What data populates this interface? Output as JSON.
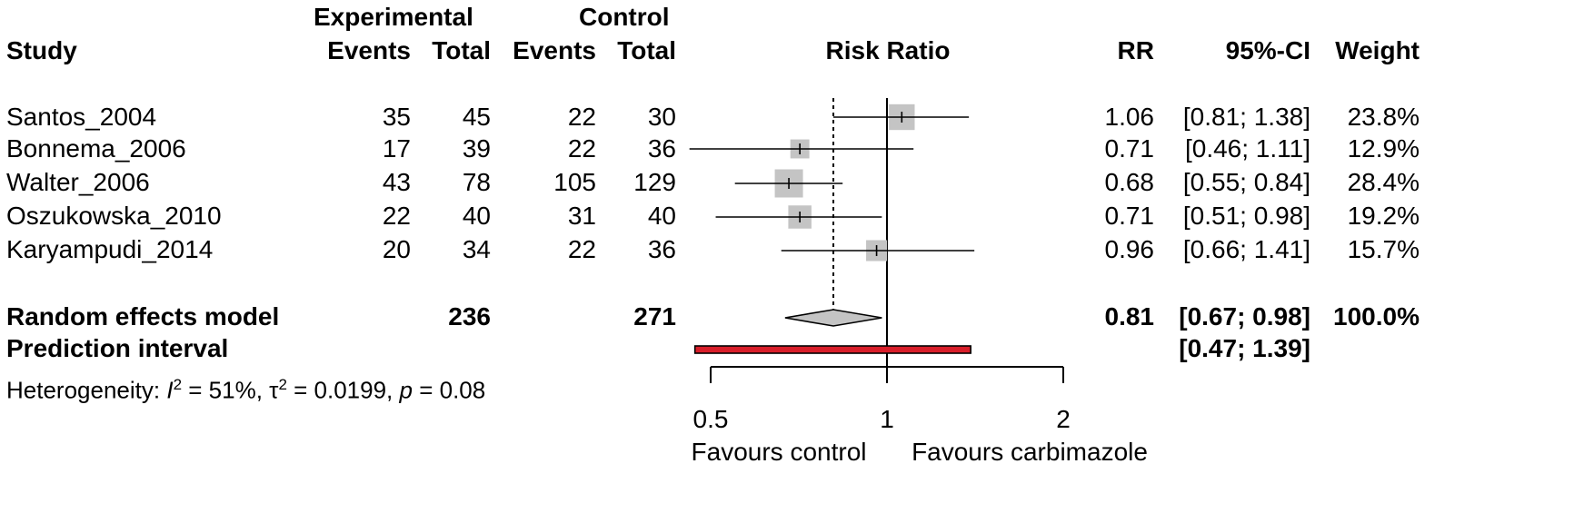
{
  "chart_data": {
    "type": "forest",
    "measure": "Risk Ratio",
    "headers": {
      "study": "Study",
      "experimental": "Experimental",
      "control": "Control",
      "events": "Events",
      "total": "Total",
      "plot": "Risk Ratio",
      "rr": "RR",
      "ci": "95%-CI",
      "weight": "Weight"
    },
    "studies": [
      {
        "name": "Santos_2004",
        "exp_events": "35",
        "exp_total": "45",
        "ctrl_events": "22",
        "ctrl_total": "30",
        "rr": 1.06,
        "lower": 0.81,
        "upper": 1.38,
        "weight": 23.8,
        "rr_text": "1.06",
        "ci_text": "[0.81; 1.38]",
        "weight_text": "23.8%"
      },
      {
        "name": "Bonnema_2006",
        "exp_events": "17",
        "exp_total": "39",
        "ctrl_events": "22",
        "ctrl_total": "36",
        "rr": 0.71,
        "lower": 0.46,
        "upper": 1.11,
        "weight": 12.9,
        "rr_text": "0.71",
        "ci_text": "[0.46; 1.11]",
        "weight_text": "12.9%"
      },
      {
        "name": "Walter_2006",
        "exp_events": "43",
        "exp_total": "78",
        "ctrl_events": "105",
        "ctrl_total": "129",
        "rr": 0.68,
        "lower": 0.55,
        "upper": 0.84,
        "weight": 28.4,
        "rr_text": "0.68",
        "ci_text": "[0.55; 0.84]",
        "weight_text": "28.4%"
      },
      {
        "name": "Oszukowska_2010",
        "exp_events": "22",
        "exp_total": "40",
        "ctrl_events": "31",
        "ctrl_total": "40",
        "rr": 0.71,
        "lower": 0.51,
        "upper": 0.98,
        "weight": 19.2,
        "rr_text": "0.71",
        "ci_text": "[0.51; 0.98]",
        "weight_text": "19.2%"
      },
      {
        "name": "Karyampudi_2014",
        "exp_events": "20",
        "exp_total": "34",
        "ctrl_events": "22",
        "ctrl_total": "36",
        "rr": 0.96,
        "lower": 0.66,
        "upper": 1.41,
        "weight": 15.7,
        "rr_text": "0.96",
        "ci_text": "[0.66; 1.41]",
        "weight_text": "15.7%"
      }
    ],
    "random_effects": {
      "label": "Random effects model",
      "exp_total": "236",
      "ctrl_total": "271",
      "rr": 0.81,
      "lower": 0.67,
      "upper": 0.98,
      "rr_text": "0.81",
      "ci_text": "[0.67; 0.98]",
      "weight_text": "100.0%"
    },
    "prediction_interval": {
      "label": "Prediction interval",
      "lower": 0.47,
      "upper": 1.39,
      "ci_text": "[0.47; 1.39]"
    },
    "heterogeneity": {
      "prefix": "Heterogeneity: ",
      "i2_symbol": "I",
      "i2_value": " = 51%, ",
      "tau_symbol": "τ",
      "tau_value": " = 0.0199, ",
      "p_symbol": "p",
      "p_value": " = 0.08"
    },
    "x_axis": {
      "scale": "log",
      "ticks": [
        0.5,
        1,
        2
      ],
      "tick_labels": [
        "0.5",
        "1",
        "2"
      ],
      "range": [
        0.5,
        2
      ],
      "null_value": 1
    },
    "favours_left": "Favours control",
    "favours_right": "Favours carbimazole",
    "colors": {
      "square": "#c4c4c4",
      "diamond": "#c4c4c4",
      "prediction": "#d81e2a",
      "line": "#000000"
    }
  }
}
